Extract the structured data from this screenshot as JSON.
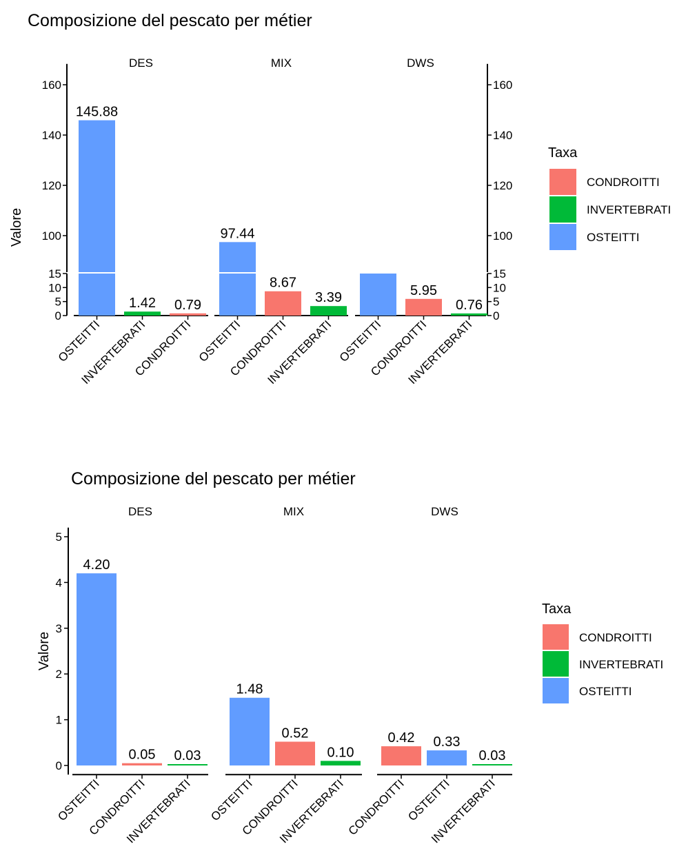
{
  "colors": {
    "CONDROITTI": "#F8766D",
    "INVERTEBRATI": "#00BA38",
    "OSTEITTI": "#619CFF"
  },
  "chart_data": [
    {
      "type": "bar",
      "title": "Composizione del pescato per métier",
      "ylabel": "Valore",
      "xlabel": "",
      "axis_break": {
        "lower_range": [
          0,
          15
        ],
        "upper_range": [
          90,
          165
        ]
      },
      "y_ticks_lower": [
        0,
        5,
        10,
        15
      ],
      "y_ticks_upper": [
        100,
        120,
        140,
        160
      ],
      "secondary_y_axis": true,
      "legend": {
        "title": "Taxa",
        "position": "right",
        "entries": [
          "CONDROITTI",
          "INVERTEBRATI",
          "OSTEITTI"
        ]
      },
      "facets": [
        {
          "name": "DES",
          "bars": [
            {
              "category": "OSTEITTI",
              "value": 145.88,
              "label": "145.88"
            },
            {
              "category": "INVERTEBRATI",
              "value": 1.42,
              "label": "1.42"
            },
            {
              "category": "CONDROITTI",
              "value": 0.79,
              "label": "0.79"
            }
          ]
        },
        {
          "name": "MIX",
          "bars": [
            {
              "category": "OSTEITTI",
              "value": 97.44,
              "label": "97.44"
            },
            {
              "category": "CONDROITTI",
              "value": 8.67,
              "label": "8.67"
            },
            {
              "category": "INVERTEBRATI",
              "value": 3.39,
              "label": "3.39"
            }
          ]
        },
        {
          "name": "DWS",
          "bars": [
            {
              "category": "OSTEITTI",
              "value": 15,
              "label": ""
            },
            {
              "category": "CONDROITTI",
              "value": 5.95,
              "label": "5.95"
            },
            {
              "category": "INVERTEBRATI",
              "value": 0.76,
              "label": "0.76"
            }
          ]
        }
      ]
    },
    {
      "type": "bar",
      "title": "Composizione del pescato per métier",
      "ylabel": "Valore",
      "xlabel": "",
      "ylim": [
        -0.2,
        5.2
      ],
      "y_ticks": [
        0,
        1,
        2,
        3,
        4,
        5
      ],
      "legend": {
        "title": "Taxa",
        "position": "right",
        "entries": [
          "CONDROITTI",
          "INVERTEBRATI",
          "OSTEITTI"
        ]
      },
      "facets": [
        {
          "name": "DES",
          "bars": [
            {
              "category": "OSTEITTI",
              "value": 4.2,
              "label": "4.20"
            },
            {
              "category": "CONDROITTI",
              "value": 0.05,
              "label": "0.05"
            },
            {
              "category": "INVERTEBRATI",
              "value": 0.03,
              "label": "0.03"
            }
          ]
        },
        {
          "name": "MIX",
          "bars": [
            {
              "category": "OSTEITTI",
              "value": 1.48,
              "label": "1.48"
            },
            {
              "category": "CONDROITTI",
              "value": 0.52,
              "label": "0.52"
            },
            {
              "category": "INVERTEBRATI",
              "value": 0.1,
              "label": "0.10"
            }
          ]
        },
        {
          "name": "DWS",
          "bars": [
            {
              "category": "CONDROITTI",
              "value": 0.42,
              "label": "0.42"
            },
            {
              "category": "OSTEITTI",
              "value": 0.33,
              "label": "0.33"
            },
            {
              "category": "INVERTEBRATI",
              "value": 0.03,
              "label": "0.03"
            }
          ]
        }
      ]
    }
  ]
}
